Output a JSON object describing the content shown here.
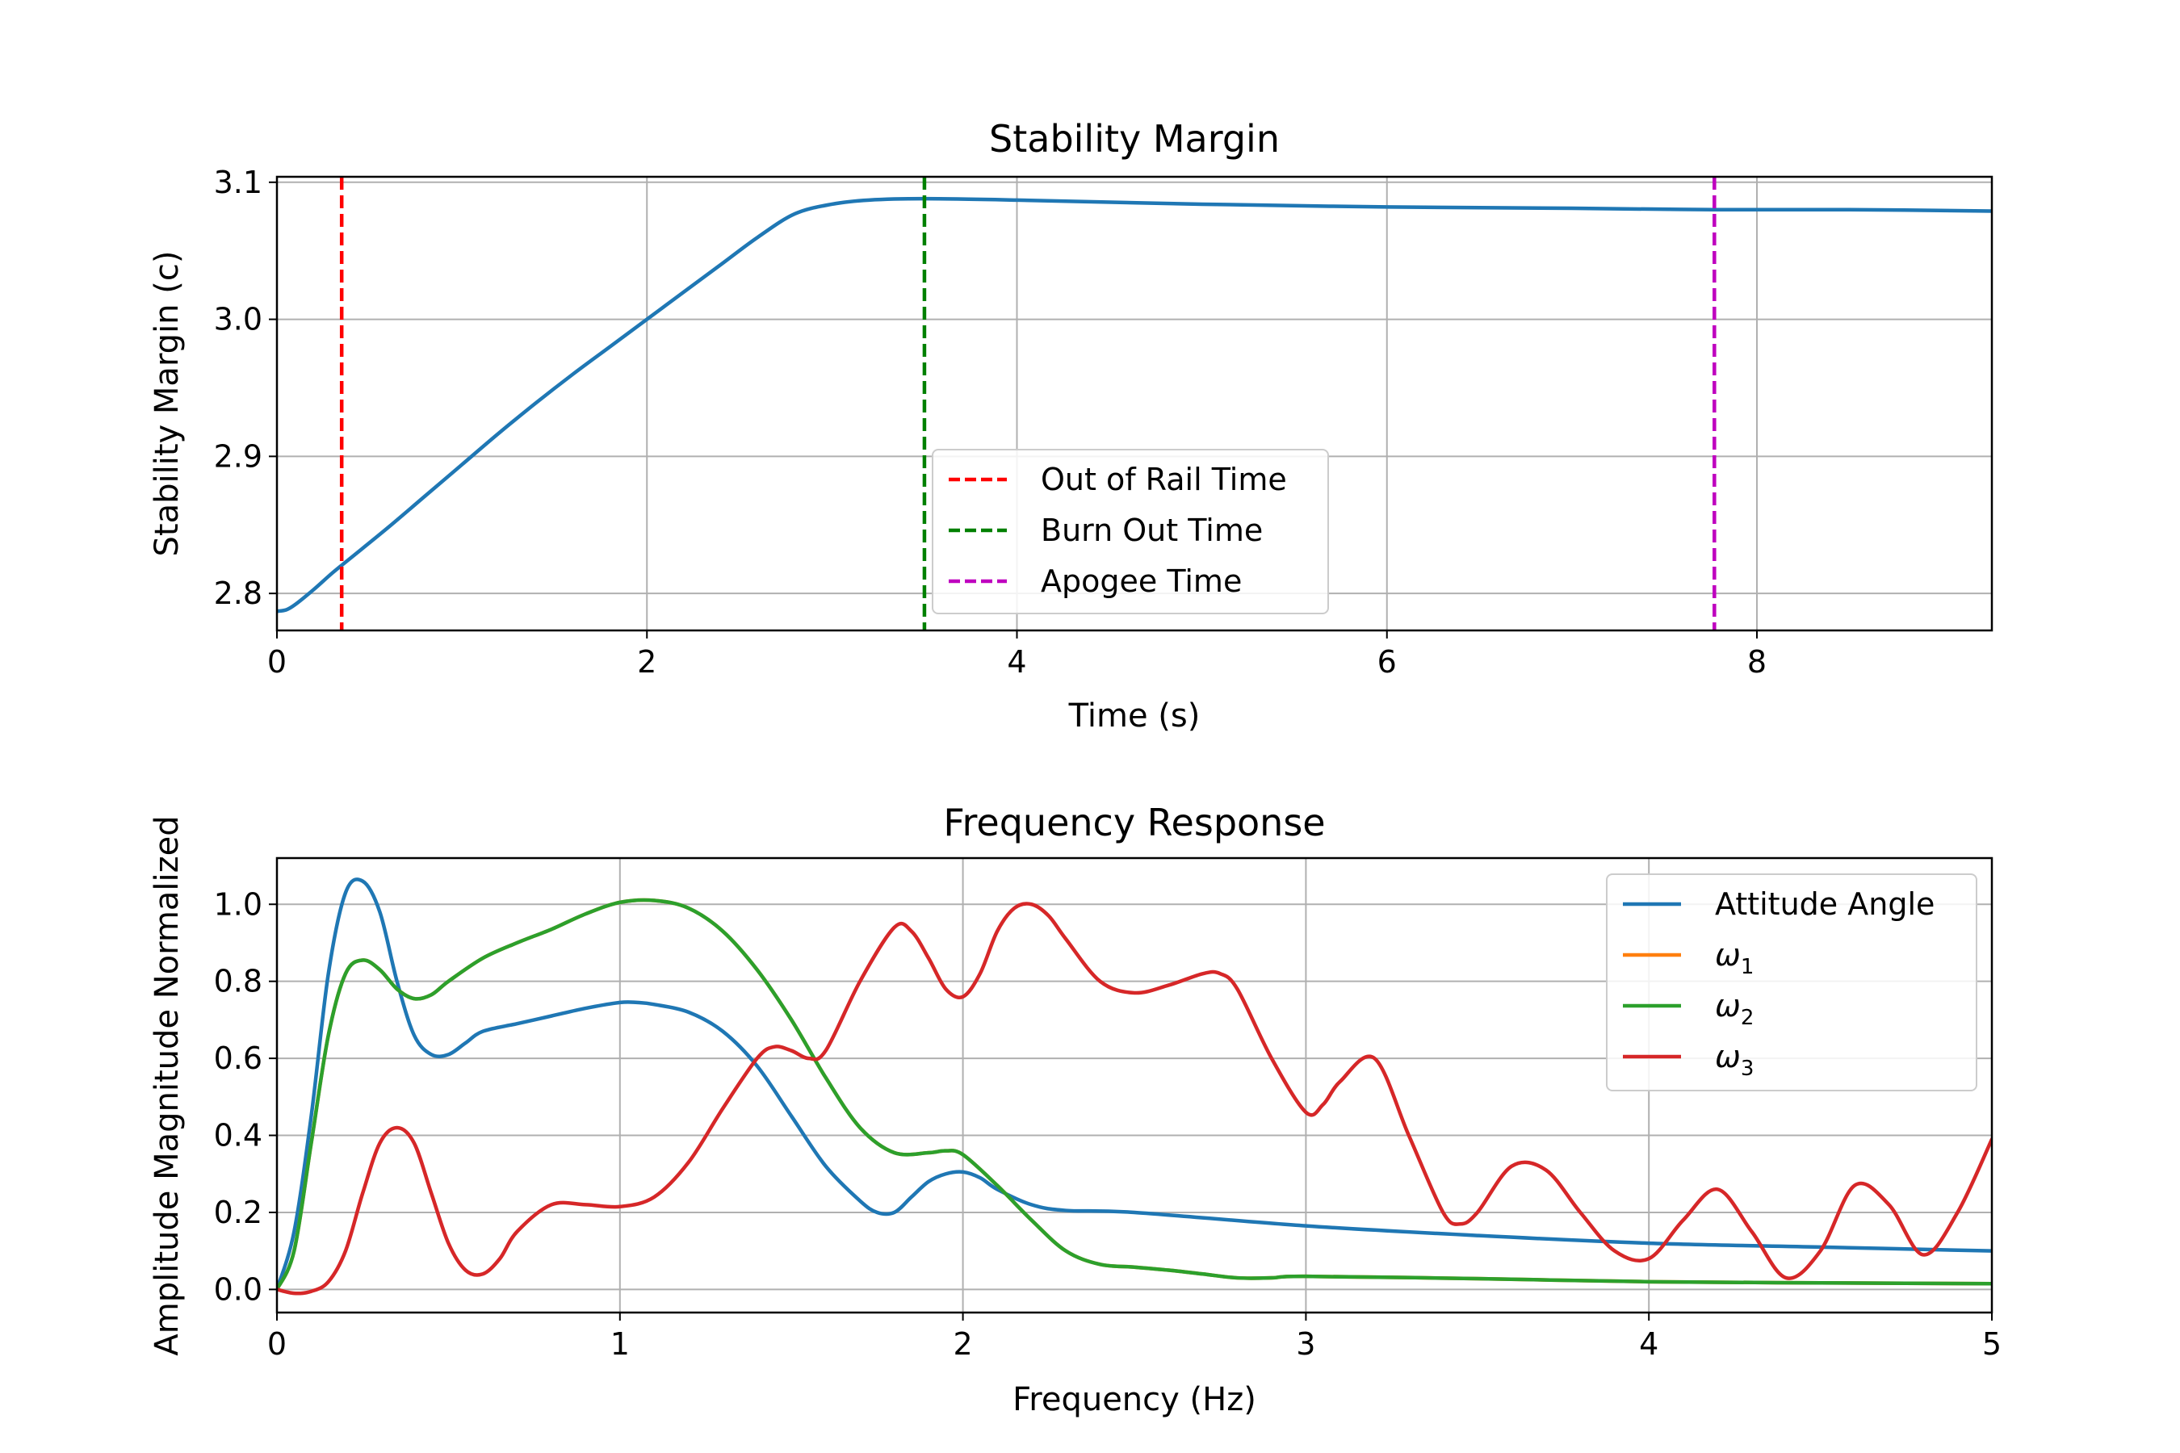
{
  "chart_data": [
    {
      "type": "line",
      "title": "Stability Margin",
      "xlabel": "Time (s)",
      "ylabel": "Stability Margin (c)",
      "xlim": [
        0,
        9.27
      ],
      "ylim": [
        2.773,
        3.104
      ],
      "xticks": [
        0,
        2,
        4,
        6,
        8
      ],
      "yticks": [
        2.8,
        2.9,
        3.0,
        3.1
      ],
      "grid": true,
      "legend_position": "lower center",
      "series": [
        {
          "color": "#1f77b4",
          "x": [
            0,
            0.05,
            0.1,
            0.2,
            0.3,
            0.4,
            0.6,
            0.8,
            1.0,
            1.2,
            1.4,
            1.6,
            1.8,
            2.0,
            2.2,
            2.4,
            2.6,
            2.8,
            3.0,
            3.2,
            3.5,
            4.0,
            5.0,
            6.0,
            7.0,
            7.77,
            8.5,
            9.27
          ],
          "values": [
            2.787,
            2.788,
            2.792,
            2.803,
            2.815,
            2.826,
            2.848,
            2.871,
            2.894,
            2.917,
            2.939,
            2.96,
            2.98,
            3.0,
            3.02,
            3.04,
            3.06,
            3.077,
            3.084,
            3.087,
            3.088,
            3.087,
            3.084,
            3.082,
            3.081,
            3.08,
            3.08,
            3.079
          ]
        }
      ],
      "vlines": [
        {
          "name": "Out of Rail Time",
          "x": 0.35,
          "color": "#ff0000"
        },
        {
          "name": "Burn Out Time",
          "x": 3.5,
          "color": "#008000"
        },
        {
          "name": "Apogee Time",
          "x": 7.77,
          "color": "#bf00bf"
        }
      ]
    },
    {
      "type": "line",
      "title": "Frequency Response",
      "xlabel": "Frequency (Hz)",
      "ylabel": "Amplitude Magnitude Normalized",
      "xlim": [
        0,
        5
      ],
      "ylim": [
        -0.06,
        1.12
      ],
      "xticks": [
        0,
        1,
        2,
        3,
        4,
        5
      ],
      "yticks": [
        0.0,
        0.2,
        0.4,
        0.6,
        0.8,
        1.0
      ],
      "grid": true,
      "legend_position": "upper right",
      "series": [
        {
          "name": "Attitude Angle",
          "color": "#1f77b4",
          "x": [
            0,
            0.05,
            0.1,
            0.15,
            0.2,
            0.25,
            0.3,
            0.35,
            0.4,
            0.45,
            0.5,
            0.55,
            0.6,
            0.7,
            0.8,
            0.9,
            1.0,
            1.05,
            1.1,
            1.2,
            1.3,
            1.4,
            1.5,
            1.6,
            1.7,
            1.75,
            1.8,
            1.85,
            1.9,
            1.95,
            2.0,
            2.05,
            2.1,
            2.2,
            2.3,
            2.5,
            3.0,
            3.5,
            4.0,
            4.5,
            5.0
          ],
          "values": [
            0.0,
            0.15,
            0.45,
            0.82,
            1.03,
            1.06,
            0.98,
            0.8,
            0.66,
            0.61,
            0.61,
            0.64,
            0.67,
            0.69,
            0.71,
            0.73,
            0.745,
            0.745,
            0.74,
            0.72,
            0.67,
            0.58,
            0.45,
            0.32,
            0.23,
            0.2,
            0.2,
            0.24,
            0.28,
            0.3,
            0.305,
            0.29,
            0.26,
            0.22,
            0.205,
            0.2,
            0.165,
            0.14,
            0.12,
            0.11,
            0.1
          ]
        },
        {
          "name": "ω1",
          "color": "#ff7f0e",
          "x": [
            0,
            0.05,
            0.1,
            0.15,
            0.2,
            0.25,
            0.3,
            0.35,
            0.4,
            0.45,
            0.5,
            0.6,
            0.7,
            0.8,
            0.9,
            1.0,
            1.1,
            1.2,
            1.3,
            1.4,
            1.5,
            1.6,
            1.7,
            1.8,
            1.9,
            1.95,
            2.0,
            2.1,
            2.2,
            2.3,
            2.4,
            2.5,
            2.6,
            2.7,
            2.8,
            2.9,
            3.0,
            3.5,
            4.0,
            4.5,
            5.0
          ],
          "values": [
            0.0,
            0.1,
            0.38,
            0.66,
            0.82,
            0.855,
            0.83,
            0.78,
            0.755,
            0.765,
            0.8,
            0.86,
            0.9,
            0.935,
            0.975,
            1.005,
            1.01,
            0.99,
            0.93,
            0.83,
            0.7,
            0.55,
            0.42,
            0.355,
            0.355,
            0.36,
            0.35,
            0.27,
            0.18,
            0.1,
            0.065,
            0.058,
            0.05,
            0.04,
            0.03,
            0.03,
            0.034,
            0.028,
            0.02,
            0.017,
            0.015
          ]
        },
        {
          "name": "ω2",
          "color": "#2ca02c",
          "x": [
            0,
            0.05,
            0.1,
            0.15,
            0.2,
            0.25,
            0.3,
            0.35,
            0.4,
            0.45,
            0.5,
            0.6,
            0.7,
            0.8,
            0.9,
            1.0,
            1.1,
            1.2,
            1.3,
            1.4,
            1.5,
            1.6,
            1.7,
            1.8,
            1.9,
            1.95,
            2.0,
            2.1,
            2.2,
            2.3,
            2.4,
            2.5,
            2.6,
            2.7,
            2.8,
            2.9,
            3.0,
            3.5,
            4.0,
            4.5,
            5.0
          ],
          "values": [
            0.0,
            0.1,
            0.38,
            0.66,
            0.82,
            0.855,
            0.83,
            0.78,
            0.755,
            0.765,
            0.8,
            0.86,
            0.9,
            0.935,
            0.975,
            1.005,
            1.01,
            0.99,
            0.93,
            0.83,
            0.7,
            0.55,
            0.42,
            0.355,
            0.355,
            0.36,
            0.35,
            0.27,
            0.18,
            0.1,
            0.065,
            0.058,
            0.05,
            0.04,
            0.03,
            0.03,
            0.034,
            0.028,
            0.02,
            0.017,
            0.015
          ]
        },
        {
          "name": "ω3",
          "color": "#d62728",
          "x": [
            0,
            0.05,
            0.1,
            0.15,
            0.2,
            0.25,
            0.3,
            0.35,
            0.4,
            0.45,
            0.5,
            0.55,
            0.6,
            0.65,
            0.7,
            0.8,
            0.9,
            1.0,
            1.1,
            1.2,
            1.3,
            1.4,
            1.45,
            1.5,
            1.55,
            1.6,
            1.7,
            1.8,
            1.85,
            1.9,
            1.95,
            2.0,
            2.05,
            2.1,
            2.15,
            2.2,
            2.25,
            2.3,
            2.4,
            2.5,
            2.6,
            2.7,
            2.75,
            2.8,
            2.9,
            3.0,
            3.05,
            3.1,
            3.2,
            3.3,
            3.4,
            3.45,
            3.5,
            3.6,
            3.7,
            3.8,
            3.9,
            4.0,
            4.1,
            4.2,
            4.3,
            4.4,
            4.5,
            4.6,
            4.7,
            4.8,
            4.9,
            5.0
          ],
          "values": [
            0.0,
            -0.01,
            -0.005,
            0.02,
            0.1,
            0.25,
            0.38,
            0.42,
            0.38,
            0.25,
            0.12,
            0.05,
            0.04,
            0.08,
            0.15,
            0.22,
            0.22,
            0.215,
            0.24,
            0.33,
            0.47,
            0.6,
            0.63,
            0.62,
            0.6,
            0.62,
            0.8,
            0.94,
            0.93,
            0.86,
            0.78,
            0.76,
            0.82,
            0.93,
            0.99,
            1.0,
            0.97,
            0.91,
            0.8,
            0.77,
            0.79,
            0.82,
            0.82,
            0.78,
            0.6,
            0.46,
            0.48,
            0.54,
            0.6,
            0.4,
            0.2,
            0.17,
            0.2,
            0.32,
            0.31,
            0.2,
            0.1,
            0.08,
            0.18,
            0.26,
            0.15,
            0.03,
            0.1,
            0.27,
            0.22,
            0.09,
            0.2,
            0.39
          ]
        }
      ]
    }
  ]
}
